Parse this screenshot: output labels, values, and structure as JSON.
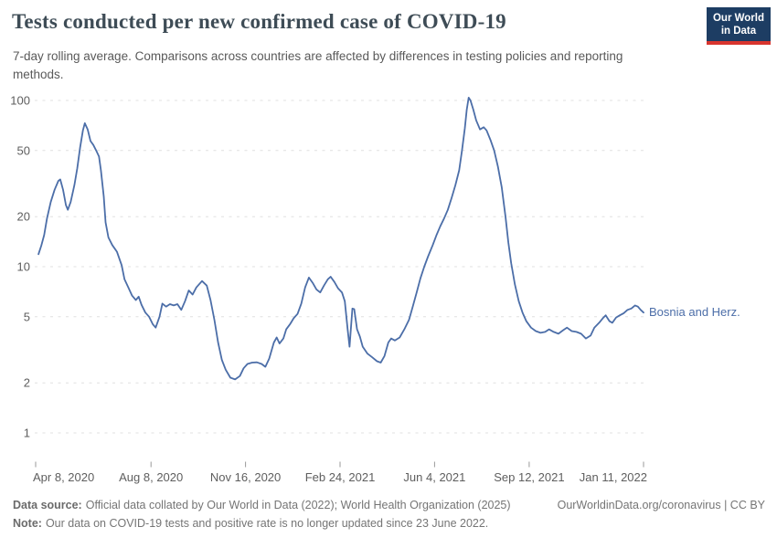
{
  "chart_data": {
    "type": "line",
    "title": "Tests conducted per new confirmed case of COVID-19",
    "subtitle": "7-day rolling average. Comparisons across countries are affected by differences in testing policies and reporting methods.",
    "yscale": "log",
    "ylim": [
      1,
      115
    ],
    "yticks": [
      1,
      2,
      5,
      10,
      20,
      50,
      100
    ],
    "xlim": [
      "2020-04-08",
      "2022-01-11"
    ],
    "xticks": [
      {
        "label": "Apr 8, 2020",
        "date": "2020-04-08"
      },
      {
        "label": "Aug 8, 2020",
        "date": "2020-08-08"
      },
      {
        "label": "Nov 16, 2020",
        "date": "2020-11-16"
      },
      {
        "label": "Feb 24, 2021",
        "date": "2021-02-24"
      },
      {
        "label": "Jun 4, 2021",
        "date": "2021-06-04"
      },
      {
        "label": "Sep 12, 2021",
        "date": "2021-09-12"
      },
      {
        "label": "Jan 11, 2022",
        "date": "2022-01-11"
      }
    ],
    "grid": "horizontal-dashed",
    "legend_position": "end-of-line",
    "series": [
      {
        "name": "Bosnia and Herz.",
        "color": "#4C6EA8",
        "points": [
          [
            "2020-04-11",
            11.9
          ],
          [
            "2020-04-14",
            13.4
          ],
          [
            "2020-04-17",
            15.5
          ],
          [
            "2020-04-20",
            19.5
          ],
          [
            "2020-04-24",
            24.5
          ],
          [
            "2020-04-28",
            29
          ],
          [
            "2020-05-02",
            32.8
          ],
          [
            "2020-05-04",
            33.5
          ],
          [
            "2020-05-07",
            29
          ],
          [
            "2020-05-10",
            23.5
          ],
          [
            "2020-05-12",
            22
          ],
          [
            "2020-05-15",
            24.5
          ],
          [
            "2020-05-19",
            31
          ],
          [
            "2020-05-22",
            39
          ],
          [
            "2020-05-25",
            52
          ],
          [
            "2020-05-28",
            66
          ],
          [
            "2020-05-30",
            73
          ],
          [
            "2020-06-02",
            67
          ],
          [
            "2020-06-05",
            57
          ],
          [
            "2020-06-08",
            54
          ],
          [
            "2020-06-11",
            50
          ],
          [
            "2020-06-14",
            46
          ],
          [
            "2020-06-16",
            38
          ],
          [
            "2020-06-19",
            26.5
          ],
          [
            "2020-06-21",
            18.5
          ],
          [
            "2020-06-24",
            15
          ],
          [
            "2020-06-28",
            13.5
          ],
          [
            "2020-07-03",
            12.3
          ],
          [
            "2020-07-08",
            10.2
          ],
          [
            "2020-07-11",
            8.4
          ],
          [
            "2020-07-15",
            7.5
          ],
          [
            "2020-07-19",
            6.7
          ],
          [
            "2020-07-23",
            6.3
          ],
          [
            "2020-07-26",
            6.6
          ],
          [
            "2020-07-29",
            5.9
          ],
          [
            "2020-08-02",
            5.3
          ],
          [
            "2020-08-06",
            5.0
          ],
          [
            "2020-08-10",
            4.5
          ],
          [
            "2020-08-13",
            4.3
          ],
          [
            "2020-08-17",
            5.0
          ],
          [
            "2020-08-20",
            6.0
          ],
          [
            "2020-08-24",
            5.75
          ],
          [
            "2020-08-28",
            5.95
          ],
          [
            "2020-09-01",
            5.85
          ],
          [
            "2020-09-05",
            5.95
          ],
          [
            "2020-09-09",
            5.5
          ],
          [
            "2020-09-13",
            6.2
          ],
          [
            "2020-09-17",
            7.2
          ],
          [
            "2020-09-21",
            6.8
          ],
          [
            "2020-09-25",
            7.5
          ],
          [
            "2020-10-01",
            8.2
          ],
          [
            "2020-10-06",
            7.7
          ],
          [
            "2020-10-10",
            6.3
          ],
          [
            "2020-10-14",
            4.8
          ],
          [
            "2020-10-18",
            3.5
          ],
          [
            "2020-10-22",
            2.75
          ],
          [
            "2020-10-26",
            2.4
          ],
          [
            "2020-10-31",
            2.15
          ],
          [
            "2020-11-05",
            2.1
          ],
          [
            "2020-11-10",
            2.2
          ],
          [
            "2020-11-14",
            2.45
          ],
          [
            "2020-11-18",
            2.6
          ],
          [
            "2020-11-23",
            2.65
          ],
          [
            "2020-11-28",
            2.66
          ],
          [
            "2020-12-03",
            2.6
          ],
          [
            "2020-12-07",
            2.5
          ],
          [
            "2020-12-11",
            2.8
          ],
          [
            "2020-12-16",
            3.5
          ],
          [
            "2020-12-19",
            3.75
          ],
          [
            "2020-12-22",
            3.45
          ],
          [
            "2020-12-26",
            3.7
          ],
          [
            "2020-12-29",
            4.2
          ],
          [
            "2021-01-02",
            4.5
          ],
          [
            "2021-01-06",
            4.9
          ],
          [
            "2021-01-10",
            5.2
          ],
          [
            "2021-01-14",
            6.0
          ],
          [
            "2021-01-18",
            7.5
          ],
          [
            "2021-01-22",
            8.6
          ],
          [
            "2021-01-26",
            8.0
          ],
          [
            "2021-01-30",
            7.3
          ],
          [
            "2021-02-03",
            7.0
          ],
          [
            "2021-02-07",
            7.7
          ],
          [
            "2021-02-11",
            8.4
          ],
          [
            "2021-02-14",
            8.7
          ],
          [
            "2021-02-18",
            8.1
          ],
          [
            "2021-02-22",
            7.4
          ],
          [
            "2021-02-26",
            7.0
          ],
          [
            "2021-03-01",
            6.2
          ],
          [
            "2021-03-04",
            4.2
          ],
          [
            "2021-03-06",
            3.3
          ],
          [
            "2021-03-09",
            5.6
          ],
          [
            "2021-03-11",
            5.55
          ],
          [
            "2021-03-14",
            4.2
          ],
          [
            "2021-03-17",
            3.8
          ],
          [
            "2021-03-20",
            3.3
          ],
          [
            "2021-03-25",
            3.0
          ],
          [
            "2021-03-30",
            2.85
          ],
          [
            "2021-04-04",
            2.7
          ],
          [
            "2021-04-08",
            2.65
          ],
          [
            "2021-04-12",
            2.9
          ],
          [
            "2021-04-16",
            3.5
          ],
          [
            "2021-04-19",
            3.7
          ],
          [
            "2021-04-23",
            3.6
          ],
          [
            "2021-04-28",
            3.75
          ],
          [
            "2021-05-03",
            4.2
          ],
          [
            "2021-05-08",
            4.8
          ],
          [
            "2021-05-12",
            5.8
          ],
          [
            "2021-05-16",
            7.0
          ],
          [
            "2021-05-20",
            8.5
          ],
          [
            "2021-05-24",
            10.0
          ],
          [
            "2021-05-28",
            11.5
          ],
          [
            "2021-06-02",
            13.5
          ],
          [
            "2021-06-06",
            15.5
          ],
          [
            "2021-06-10",
            17.5
          ],
          [
            "2021-06-14",
            19.5
          ],
          [
            "2021-06-18",
            22
          ],
          [
            "2021-06-22",
            26
          ],
          [
            "2021-06-26",
            31
          ],
          [
            "2021-06-30",
            38
          ],
          [
            "2021-07-03",
            50
          ],
          [
            "2021-07-06",
            68
          ],
          [
            "2021-07-08",
            88
          ],
          [
            "2021-07-10",
            104
          ],
          [
            "2021-07-12",
            100
          ],
          [
            "2021-07-15",
            88
          ],
          [
            "2021-07-18",
            76
          ],
          [
            "2021-07-22",
            67
          ],
          [
            "2021-07-26",
            69
          ],
          [
            "2021-07-29",
            66
          ],
          [
            "2021-08-02",
            58
          ],
          [
            "2021-08-06",
            50
          ],
          [
            "2021-08-10",
            40
          ],
          [
            "2021-08-14",
            30
          ],
          [
            "2021-08-18",
            20
          ],
          [
            "2021-08-21",
            14
          ],
          [
            "2021-08-24",
            10.5
          ],
          [
            "2021-08-28",
            7.8
          ],
          [
            "2021-09-01",
            6.2
          ],
          [
            "2021-09-05",
            5.3
          ],
          [
            "2021-09-09",
            4.7
          ],
          [
            "2021-09-14",
            4.3
          ],
          [
            "2021-09-19",
            4.1
          ],
          [
            "2021-09-24",
            4.0
          ],
          [
            "2021-09-29",
            4.05
          ],
          [
            "2021-10-03",
            4.2
          ],
          [
            "2021-10-08",
            4.05
          ],
          [
            "2021-10-13",
            3.95
          ],
          [
            "2021-10-18",
            4.15
          ],
          [
            "2021-10-22",
            4.3
          ],
          [
            "2021-10-27",
            4.1
          ],
          [
            "2021-11-01",
            4.05
          ],
          [
            "2021-11-06",
            3.95
          ],
          [
            "2021-11-11",
            3.7
          ],
          [
            "2021-11-16",
            3.85
          ],
          [
            "2021-11-20",
            4.3
          ],
          [
            "2021-11-25",
            4.6
          ],
          [
            "2021-11-29",
            4.9
          ],
          [
            "2021-12-02",
            5.1
          ],
          [
            "2021-12-06",
            4.7
          ],
          [
            "2021-12-09",
            4.6
          ],
          [
            "2021-12-13",
            4.95
          ],
          [
            "2021-12-17",
            5.1
          ],
          [
            "2021-12-21",
            5.25
          ],
          [
            "2021-12-25",
            5.5
          ],
          [
            "2021-12-29",
            5.6
          ],
          [
            "2022-01-02",
            5.85
          ],
          [
            "2022-01-05",
            5.75
          ],
          [
            "2022-01-08",
            5.5
          ],
          [
            "2022-01-11",
            5.3
          ]
        ]
      }
    ]
  },
  "logo": {
    "line1": "Our World",
    "line2": "in Data"
  },
  "footer": {
    "source_label": "Data source:",
    "source_text": "Official data collated by Our World in Data (2022); World Health Organization (2025)",
    "attribution": "OurWorldinData.org/coronavirus | CC BY",
    "note_label": "Note:",
    "note_text": "Our data on COVID-19 tests and positive rate is no longer updated since 23 June 2022."
  },
  "colors": {
    "line": "#4C6EA8",
    "logo_bg": "#1d3d63",
    "logo_stripe": "#d8352e"
  }
}
